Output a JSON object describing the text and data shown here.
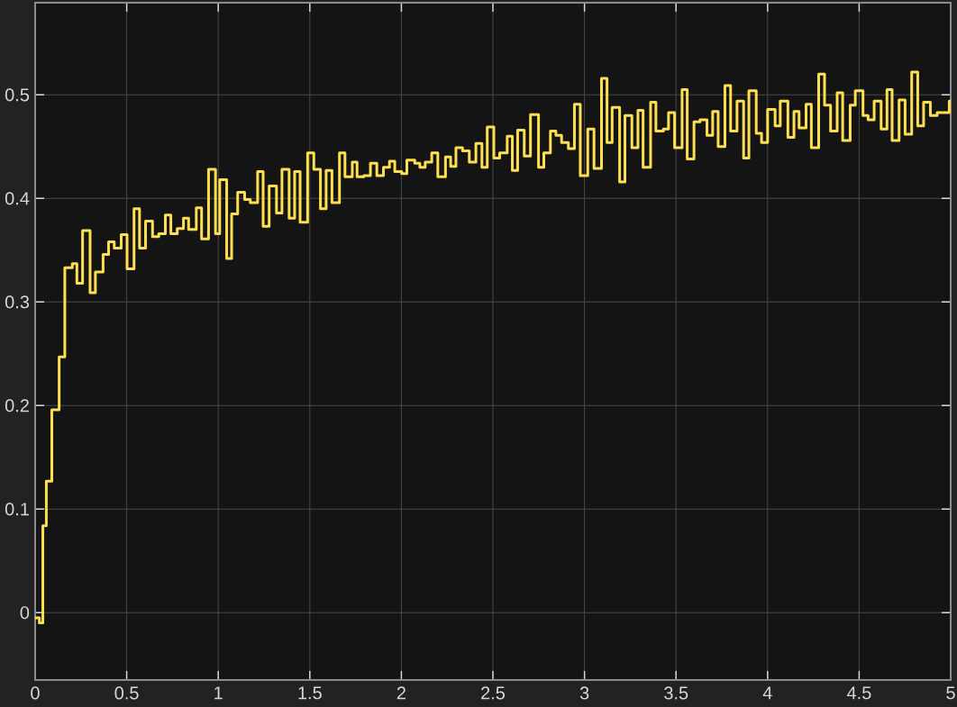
{
  "chart_data": {
    "type": "step",
    "color": "#ffdf4f",
    "grid": true,
    "xlim": [
      0,
      5
    ],
    "ylim": [
      -0.065,
      0.589
    ],
    "xticks": [
      0,
      0.5,
      1,
      1.5,
      2,
      2.5,
      3,
      3.5,
      4,
      4.5,
      5
    ],
    "yticks": [
      0,
      0.1,
      0.2,
      0.3,
      0.4,
      0.5
    ],
    "x": [
      0,
      0.023,
      0.042,
      0.061,
      0.091,
      0.131,
      0.162,
      0.203,
      0.228,
      0.259,
      0.3,
      0.329,
      0.371,
      0.401,
      0.432,
      0.47,
      0.502,
      0.54,
      0.57,
      0.603,
      0.641,
      0.675,
      0.711,
      0.741,
      0.776,
      0.81,
      0.838,
      0.88,
      0.909,
      0.947,
      0.985,
      1.008,
      1.046,
      1.073,
      1.106,
      1.144,
      1.175,
      1.215,
      1.245,
      1.278,
      1.318,
      1.348,
      1.387,
      1.417,
      1.447,
      1.488,
      1.522,
      1.558,
      1.589,
      1.621,
      1.662,
      1.692,
      1.732,
      1.758,
      1.795,
      1.831,
      1.866,
      1.902,
      1.935,
      1.964,
      2.002,
      2.03,
      2.073,
      2.101,
      2.13,
      2.166,
      2.199,
      2.241,
      2.269,
      2.298,
      2.334,
      2.371,
      2.407,
      2.44,
      2.469,
      2.505,
      2.537,
      2.578,
      2.606,
      2.635,
      2.671,
      2.705,
      2.749,
      2.778,
      2.814,
      2.844,
      2.875,
      2.912,
      2.945,
      2.977,
      3.018,
      3.052,
      3.093,
      3.123,
      3.151,
      3.192,
      3.221,
      3.259,
      3.292,
      3.32,
      3.361,
      3.39,
      3.431,
      3.459,
      3.492,
      3.533,
      3.561,
      3.598,
      3.631,
      3.669,
      3.7,
      3.73,
      3.767,
      3.798,
      3.833,
      3.869,
      3.898,
      3.938,
      3.967,
      4.0,
      4.041,
      4.069,
      4.111,
      4.144,
      4.172,
      4.21,
      4.239,
      4.279,
      4.311,
      4.344,
      4.38,
      4.41,
      4.451,
      4.479,
      4.521,
      4.549,
      4.582,
      4.62,
      4.652,
      4.68,
      4.718,
      4.751,
      4.787,
      4.82,
      4.852,
      4.889,
      4.926,
      4.992
    ],
    "values": [
      -0.005,
      -0.01,
      0.084,
      0.127,
      0.196,
      0.247,
      0.333,
      0.337,
      0.318,
      0.369,
      0.309,
      0.329,
      0.346,
      0.358,
      0.352,
      0.365,
      0.332,
      0.39,
      0.352,
      0.378,
      0.363,
      0.366,
      0.384,
      0.366,
      0.371,
      0.381,
      0.37,
      0.391,
      0.361,
      0.428,
      0.366,
      0.418,
      0.342,
      0.385,
      0.406,
      0.399,
      0.396,
      0.426,
      0.373,
      0.412,
      0.386,
      0.428,
      0.381,
      0.426,
      0.377,
      0.444,
      0.428,
      0.39,
      0.427,
      0.396,
      0.444,
      0.421,
      0.435,
      0.421,
      0.422,
      0.434,
      0.422,
      0.43,
      0.436,
      0.426,
      0.424,
      0.437,
      0.434,
      0.43,
      0.435,
      0.444,
      0.421,
      0.44,
      0.431,
      0.449,
      0.446,
      0.435,
      0.453,
      0.43,
      0.469,
      0.439,
      0.444,
      0.46,
      0.427,
      0.466,
      0.441,
      0.481,
      0.43,
      0.444,
      0.465,
      0.461,
      0.454,
      0.448,
      0.491,
      0.422,
      0.467,
      0.429,
      0.516,
      0.454,
      0.488,
      0.416,
      0.48,
      0.449,
      0.485,
      0.43,
      0.493,
      0.465,
      0.467,
      0.483,
      0.449,
      0.505,
      0.438,
      0.474,
      0.476,
      0.461,
      0.484,
      0.45,
      0.509,
      0.465,
      0.494,
      0.439,
      0.504,
      0.463,
      0.454,
      0.486,
      0.47,
      0.494,
      0.459,
      0.484,
      0.468,
      0.491,
      0.449,
      0.52,
      0.49,
      0.465,
      0.502,
      0.456,
      0.49,
      0.504,
      0.48,
      0.476,
      0.494,
      0.467,
      0.505,
      0.456,
      0.495,
      0.462,
      0.522,
      0.47,
      0.493,
      0.48,
      0.483,
      0.494
    ]
  }
}
